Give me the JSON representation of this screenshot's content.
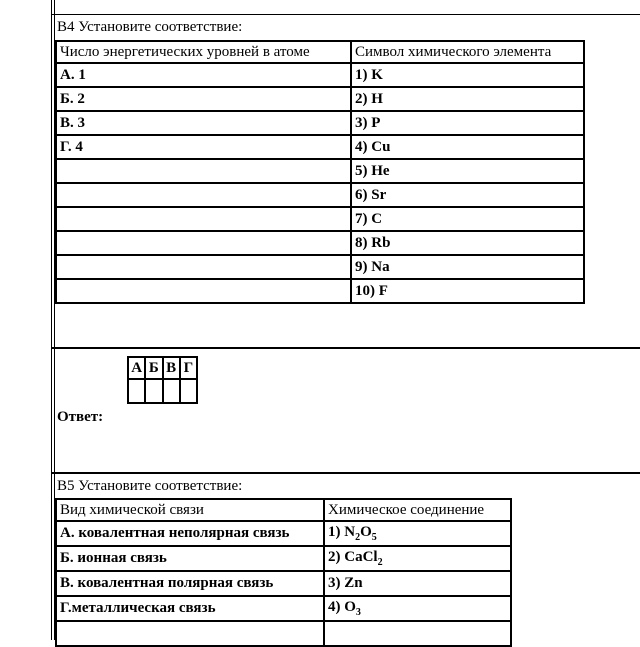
{
  "b4": {
    "title": "В4 Установите соответствие:",
    "headers": [
      "Число энергетических уровней в атоме",
      "Символ химического элемента"
    ],
    "left": [
      "А. 1",
      "Б.  2",
      "В.  3",
      "Г.  4"
    ],
    "right": [
      "1) K",
      "2) H",
      "3)  P",
      "4) Cu",
      "5)  He",
      "6)  Sr",
      "7) C",
      "8) Rb",
      "9) Na",
      "10) F"
    ]
  },
  "answer": {
    "label": "Ответ:",
    "letters": [
      "А",
      "Б",
      "В",
      "Г"
    ]
  },
  "b5": {
    "title": "В5 Установите соответствие:",
    "headers": [
      "Вид химической связи",
      "Химическое соединение"
    ],
    "left": [
      "А. ковалентная неполярная связь",
      "Б.  ионная связь",
      "В.  ковалентная  полярная связь",
      "Г.металлическая связь"
    ],
    "right": [
      {
        "parts": [
          "1) N",
          "2",
          "O",
          "5"
        ]
      },
      {
        "parts": [
          "2)  CaCl",
          "2"
        ]
      },
      {
        "parts": [
          "3) Zn"
        ]
      },
      {
        "parts": [
          "4) O",
          "3"
        ]
      }
    ]
  }
}
